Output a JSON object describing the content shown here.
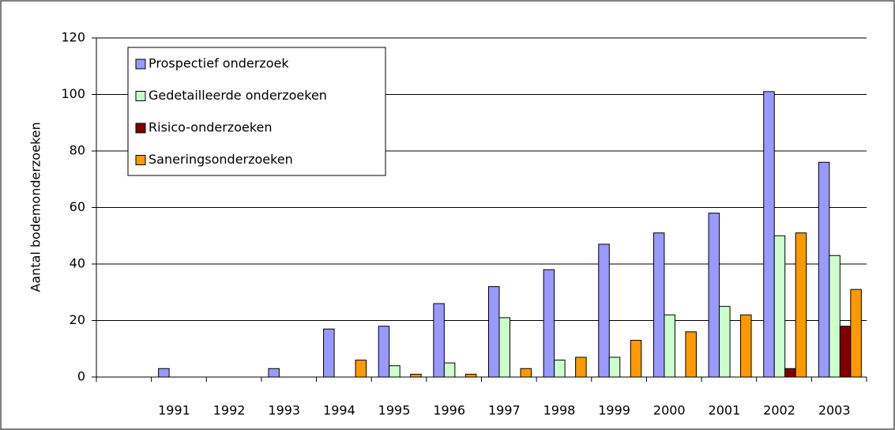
{
  "chart_data": {
    "type": "bar",
    "y_label": "Aantal bodemonderzoeken",
    "categories": [
      null,
      "1991",
      "1992",
      "1993",
      "1994",
      "1995",
      "1996",
      "1997",
      "1998",
      "1999",
      "2000",
      "2001",
      "2002",
      "2003"
    ],
    "series": [
      {
        "name": "Prospectief onderzoek",
        "color": "#9999ff",
        "values": [
          null,
          3,
          0,
          3,
          17,
          18,
          26,
          32,
          38,
          47,
          51,
          58,
          101,
          76
        ]
      },
      {
        "name": "Gedetailleerde onderzoeken",
        "color": "#ccffcc",
        "values": [
          null,
          0,
          0,
          0,
          0,
          4,
          5,
          21,
          6,
          7,
          22,
          25,
          50,
          43
        ]
      },
      {
        "name": "Risico-onderzoeken",
        "color": "#800000",
        "values": [
          null,
          0,
          0,
          0,
          0,
          0,
          0,
          0,
          0,
          0,
          0,
          0,
          3,
          18
        ]
      },
      {
        "name": "Saneringsonderzoeken",
        "color": "#ff9900",
        "values": [
          null,
          0,
          0,
          0,
          6,
          1,
          1,
          3,
          7,
          13,
          16,
          22,
          51,
          31
        ]
      }
    ],
    "ylim": [
      0,
      120
    ],
    "yticks": [
      0,
      20,
      40,
      60,
      80,
      100,
      120
    ],
    "grid": true,
    "legend": "top-left"
  }
}
